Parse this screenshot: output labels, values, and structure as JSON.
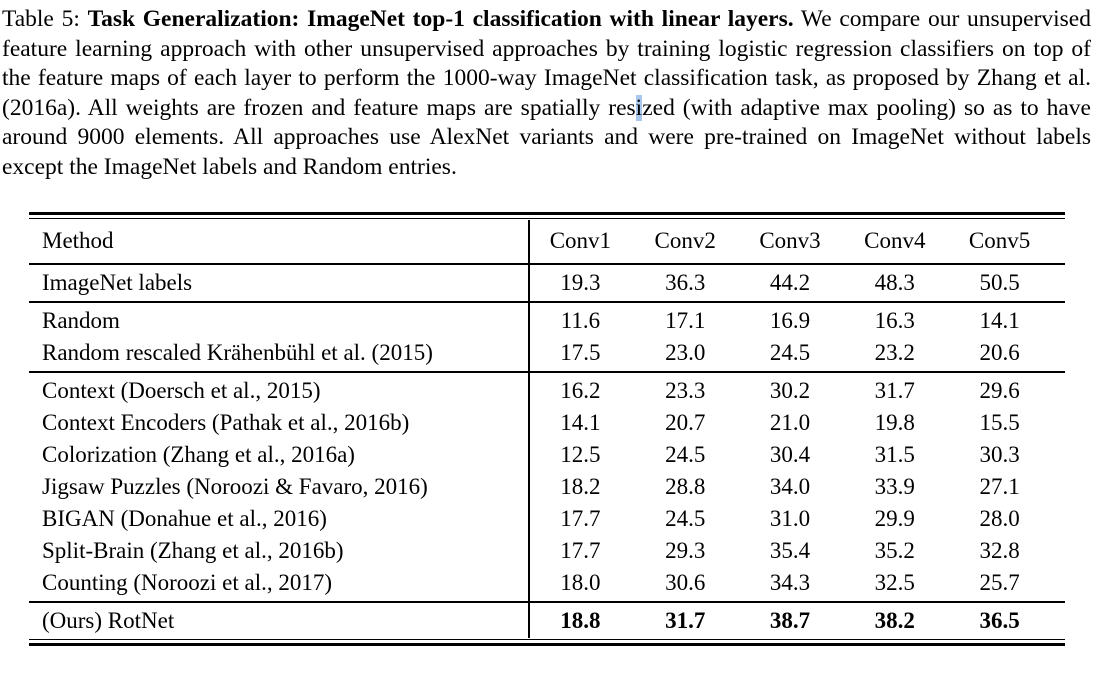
{
  "page": {
    "background_color": "#ffffff",
    "text_color": "#000000"
  },
  "caption": {
    "label": "Table 5: ",
    "title_bold": "Task Generalization: ImageNet top-1 classification with linear layers.",
    "body_before_highlight": " We compare our unsupervised feature learning approach with other unsupervised approaches by training logistic regression classifiers on top of the feature maps of each layer to perform the 1000-way ImageNet classification task, as proposed by Zhang et al. (2016a). All weights are frozen and feature maps are spatially res",
    "highlighted_text": "i",
    "highlight_color": "#a9c8ee",
    "body_after_highlight": "zed (with adaptive max pooling) so as to have around 9000 elements.  All approaches use AlexNet variants and were pre-trained on ImageNet without labels except the ImageNet labels and Random entries."
  },
  "chart_data": {
    "type": "table",
    "title": "Task Generalization: ImageNet top-1 classification with linear layers",
    "columns": [
      "Method",
      "Conv1",
      "Conv2",
      "Conv3",
      "Conv4",
      "Conv5"
    ],
    "rows": [
      [
        "ImageNet labels",
        19.3,
        36.3,
        44.2,
        48.3,
        50.5
      ],
      [
        "Random",
        11.6,
        17.1,
        16.9,
        16.3,
        14.1
      ],
      [
        "Random rescaled Krähenbühl et al. (2015)",
        17.5,
        23.0,
        24.5,
        23.2,
        20.6
      ],
      [
        "Context (Doersch et al., 2015)",
        16.2,
        23.3,
        30.2,
        31.7,
        29.6
      ],
      [
        "Context Encoders (Pathak et al., 2016b)",
        14.1,
        20.7,
        21.0,
        19.8,
        15.5
      ],
      [
        "Colorization (Zhang et al., 2016a)",
        12.5,
        24.5,
        30.4,
        31.5,
        30.3
      ],
      [
        "Jigsaw Puzzles (Noroozi & Favaro, 2016)",
        18.2,
        28.8,
        34.0,
        33.9,
        27.1
      ],
      [
        "BIGAN (Donahue et al., 2016)",
        17.7,
        24.5,
        31.0,
        29.9,
        28.0
      ],
      [
        "Split-Brain (Zhang et al., 2016b)",
        17.7,
        29.3,
        35.4,
        35.2,
        32.8
      ],
      [
        "Counting (Noroozi et al., 2017)",
        18.0,
        30.6,
        34.3,
        32.5,
        25.7
      ],
      [
        "(Ours) RotNet",
        18.8,
        31.7,
        38.7,
        38.2,
        36.5
      ]
    ]
  },
  "table": {
    "header": {
      "method_label": "Method",
      "columns": [
        "Conv1",
        "Conv2",
        "Conv3",
        "Conv4",
        "Conv5"
      ]
    },
    "groups": [
      {
        "rows": [
          {
            "method": "ImageNet labels",
            "values": [
              "19.3",
              "36.3",
              "44.2",
              "48.3",
              "50.5"
            ],
            "bold_values": false
          }
        ]
      },
      {
        "rows": [
          {
            "method": "Random",
            "values": [
              "11.6",
              "17.1",
              "16.9",
              "16.3",
              "14.1"
            ],
            "bold_values": false
          },
          {
            "method": "Random rescaled Krähenbühl et al. (2015)",
            "values": [
              "17.5",
              "23.0",
              "24.5",
              "23.2",
              "20.6"
            ],
            "bold_values": false
          }
        ]
      },
      {
        "rows": [
          {
            "method": "Context (Doersch et al., 2015)",
            "values": [
              "16.2",
              "23.3",
              "30.2",
              "31.7",
              "29.6"
            ],
            "bold_values": false
          },
          {
            "method": "Context Encoders (Pathak et al., 2016b)",
            "values": [
              "14.1",
              "20.7",
              "21.0",
              "19.8",
              "15.5"
            ],
            "bold_values": false
          },
          {
            "method": "Colorization (Zhang et al., 2016a)",
            "values": [
              "12.5",
              "24.5",
              "30.4",
              "31.5",
              "30.3"
            ],
            "bold_values": false
          },
          {
            "method": "Jigsaw Puzzles (Noroozi & Favaro, 2016)",
            "values": [
              "18.2",
              "28.8",
              "34.0",
              "33.9",
              "27.1"
            ],
            "bold_values": false
          },
          {
            "method": "BIGAN (Donahue et al., 2016)",
            "values": [
              "17.7",
              "24.5",
              "31.0",
              "29.9",
              "28.0"
            ],
            "bold_values": false
          },
          {
            "method": "Split-Brain (Zhang et al., 2016b)",
            "values": [
              "17.7",
              "29.3",
              "35.4",
              "35.2",
              "32.8"
            ],
            "bold_values": false
          },
          {
            "method": "Counting (Noroozi et al., 2017)",
            "values": [
              "18.0",
              "30.6",
              "34.3",
              "32.5",
              "25.7"
            ],
            "bold_values": false
          }
        ]
      },
      {
        "rows": [
          {
            "method": "(Ours) RotNet",
            "values": [
              "18.8",
              "31.7",
              "38.7",
              "38.2",
              "36.5"
            ],
            "bold_values": true
          }
        ]
      }
    ]
  }
}
